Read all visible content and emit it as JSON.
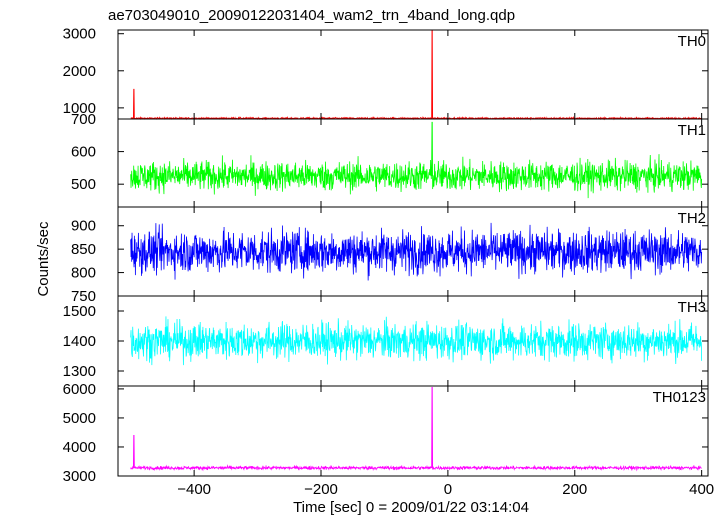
{
  "title": "ae703049010_20090122031404_wam2_trn_4band_long.qdp",
  "ylabel": "Counts/sec",
  "xlabel": "Time [sec] 0 = 2009/01/22 03:14:04",
  "chart_data": [
    {
      "type": "line",
      "name": "TH0",
      "color": "#ff0000",
      "xlim": [
        -520,
        410
      ],
      "ylim": [
        700,
        3100
      ],
      "yticks": [
        1000,
        2000,
        3000
      ],
      "ytick_labels": [
        "1000",
        "2000",
        "3000"
      ],
      "baseline": 720,
      "noise": 20,
      "spikes": [
        {
          "x": -495,
          "y": 1500
        },
        {
          "x": -25,
          "y": 3080
        }
      ]
    },
    {
      "type": "line",
      "name": "TH1",
      "color": "#00ff00",
      "xlim": [
        -520,
        410
      ],
      "ylim": [
        430,
        700
      ],
      "yticks": [
        500,
        600,
        700
      ],
      "ytick_labels": [
        "500",
        "600",
        "700"
      ],
      "baseline": 525,
      "noise": 45,
      "spikes": [
        {
          "x": -25,
          "y": 690
        }
      ]
    },
    {
      "type": "line",
      "name": "TH2",
      "color": "#0000ff",
      "xlim": [
        -520,
        410
      ],
      "ylim": [
        750,
        940
      ],
      "yticks": [
        750,
        800,
        850,
        900
      ],
      "ytick_labels": [
        "750",
        "800",
        "850",
        "900"
      ],
      "baseline": 845,
      "noise": 45,
      "spikes": []
    },
    {
      "type": "line",
      "name": "TH3",
      "color": "#00ffff",
      "xlim": [
        -520,
        410
      ],
      "ylim": [
        1250,
        1550
      ],
      "yticks": [
        1300,
        1400,
        1500
      ],
      "ytick_labels": [
        "1300",
        "1400",
        "1500"
      ],
      "baseline": 1400,
      "noise": 60,
      "spikes": []
    },
    {
      "type": "line",
      "name": "TH0123",
      "color": "#ff00ff",
      "xlim": [
        -520,
        410
      ],
      "ylim": [
        3000,
        6100
      ],
      "yticks": [
        3000,
        4000,
        5000,
        6000
      ],
      "ytick_labels": [
        "3000",
        "4000",
        "5000",
        "6000"
      ],
      "baseline": 3280,
      "noise": 60,
      "spikes": [
        {
          "x": -495,
          "y": 4400
        },
        {
          "x": -25,
          "y": 6050
        }
      ]
    }
  ],
  "xaxis": {
    "ticks": [
      -400,
      -200,
      0,
      200,
      400
    ],
    "tick_labels": [
      "−400",
      "−200",
      "0",
      "200",
      "400"
    ]
  }
}
